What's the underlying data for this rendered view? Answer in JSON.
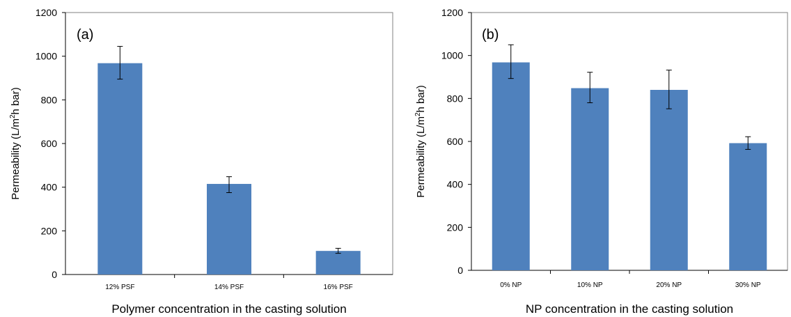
{
  "colors": {
    "bar": "#4f81bd",
    "axis": "#000000",
    "frame": "#808080"
  },
  "chart_data": [
    {
      "type": "bar",
      "panel_label": "(a)",
      "categories": [
        "12% PSF",
        "14% PSF",
        "16% PSF"
      ],
      "values": [
        968,
        415,
        108
      ],
      "errors": [
        [
          895,
          1045
        ],
        [
          375,
          448
        ],
        [
          97,
          120
        ]
      ],
      "xlabel": "Polymer concentration in the casting solution",
      "ylabel": "Permeability (L/m",
      "ylabel_sup": "2",
      "ylabel_tail": "h bar)",
      "ylim": [
        0,
        1200
      ],
      "yticks": [
        0,
        200,
        400,
        600,
        800,
        1000,
        1200
      ],
      "grid": false
    },
    {
      "type": "bar",
      "panel_label": "(b)",
      "categories": [
        "0% NP",
        "10% NP",
        "20% NP",
        "30% NP"
      ],
      "values": [
        968,
        848,
        840,
        592
      ],
      "errors": [
        [
          893,
          1050
        ],
        [
          780,
          922
        ],
        [
          752,
          932
        ],
        [
          563,
          622
        ]
      ],
      "xlabel": "NP concentration in the casting solution",
      "ylabel": "Permeability (L/m",
      "ylabel_sup": "2",
      "ylabel_tail": "h bar)",
      "ylim": [
        0,
        1200
      ],
      "yticks": [
        0,
        200,
        400,
        600,
        800,
        1000,
        1200
      ],
      "grid": false
    }
  ]
}
